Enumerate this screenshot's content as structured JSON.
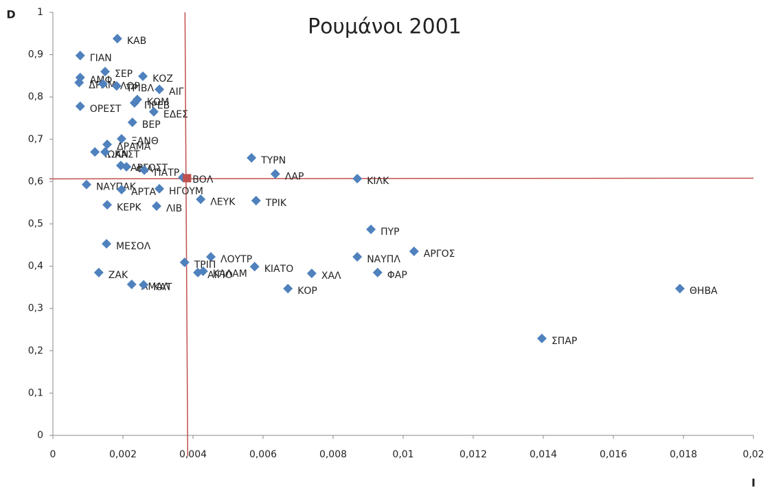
{
  "chart_data": {
    "type": "scatter",
    "title": "Ρουμάνοι 2001",
    "x_label": "I",
    "y_label": "D",
    "color": "#4f81bd",
    "mean_color": "#c0504d",
    "mean": {
      "x": 0.00383,
      "y": 0.608
    },
    "labels": [
      "ΚΑΒ",
      "ΓΙΑΝ",
      "ΣΕΡ",
      "ΚΟΖ",
      "ΑΜΦ",
      "ΔΡΑΜ",
      "ΦΛΩΡ",
      "ΤΡΙΒΛ",
      "ΑΙΓ",
      "ΚΟΜ",
      "ΠΡΕΒ",
      "ΟΡΕΣΤ",
      "ΕΔΕΣ",
      "ΒΕΡ",
      "ΞΑΝΘ",
      "ΔΡΑΜΑ",
      "ΙΩΑΝ",
      "ΚΑΣΤ",
      "ΑΡΓΟΣΤ",
      "ΦΙΛ",
      "ΠΑΤΡ",
      "ΝΑΥΠΑΚ",
      "ΑΡΤΑ",
      "ΗΓΟΥΜ",
      "ΒΟΛ",
      "ΚΕΡΚ",
      "ΛΙΒ",
      "ΛΕΥΚ",
      "ΤΡΙΚ",
      "ΤΥΡΝ",
      "ΛΑΡ",
      "ΚΙΛΚ",
      "ΠΥΡ",
      "ΝΑΥΠΛ",
      "ΑΡΓΟΣ",
      "ΦΑΡ",
      "ΘΗΒΑ",
      "ΣΠΑΡ",
      "ΚΟΡ",
      "ΧΑΛ",
      "ΚΙΑΤΟ",
      "ΛΟΥΤΡ",
      "ΤΡΙΠ",
      "ΚΑΛΑΜ",
      "ΑΙΓΙΟ",
      "ΜΕΣΟΛ",
      "ΖΑΚ",
      "ΑΜΑΛ",
      "ΚΑΤ"
    ],
    "x": [
      0.00184,
      0.00078,
      0.00149,
      0.00257,
      0.00078,
      0.00075,
      0.00143,
      0.00182,
      0.00304,
      0.00241,
      0.00233,
      0.00078,
      0.00288,
      0.00227,
      0.00196,
      0.00155,
      0.0012,
      0.00149,
      0.00194,
      0.0021,
      0.00261,
      0.00096,
      0.00196,
      0.00304,
      0.00371,
      0.00155,
      0.00296,
      0.00422,
      0.0058,
      0.00567,
      0.00635,
      0.00869,
      0.00908,
      0.00869,
      0.01031,
      0.00927,
      0.0179,
      0.01396,
      0.00671,
      0.00739,
      0.00576,
      0.00451,
      0.00376,
      0.00429,
      0.00414,
      0.00153,
      0.00131,
      0.00225,
      0.00259
    ],
    "values": [
      0.938,
      0.898,
      0.86,
      0.849,
      0.846,
      0.834,
      0.831,
      0.826,
      0.818,
      0.794,
      0.786,
      0.778,
      0.765,
      0.74,
      0.701,
      0.688,
      0.67,
      0.67,
      0.638,
      0.635,
      0.627,
      0.593,
      0.581,
      0.583,
      0.61,
      0.545,
      0.542,
      0.558,
      0.555,
      0.656,
      0.618,
      0.607,
      0.487,
      0.422,
      0.435,
      0.385,
      0.347,
      0.229,
      0.347,
      0.383,
      0.399,
      0.422,
      0.409,
      0.388,
      0.385,
      0.453,
      0.385,
      0.357,
      0.356
    ],
    "xlim": [
      0,
      0.02
    ],
    "ylim": [
      0,
      1
    ],
    "xticks": [
      0,
      {
        "value": 0.002,
        "label": "0,002"
      },
      {
        "value": 0.004,
        "label": "0,004"
      },
      {
        "value": 0.006,
        "label": "0,006"
      },
      {
        "value": 0.008,
        "label": "0,008"
      },
      {
        "value": 0.01,
        "label": "0,01"
      },
      {
        "value": 0.012,
        "label": "0,012"
      },
      {
        "value": 0.014,
        "label": "0,014"
      },
      {
        "value": 0.016,
        "label": "0,016"
      },
      {
        "value": 0.018,
        "label": "0,018"
      },
      {
        "value": 0.02,
        "label": "0,02"
      }
    ],
    "yticks": [
      0,
      {
        "value": 0.1,
        "label": "0,1"
      },
      {
        "value": 0.2,
        "label": "0,2"
      },
      {
        "value": 0.3,
        "label": "0,3"
      },
      {
        "value": 0.4,
        "label": "0,4"
      },
      {
        "value": 0.5,
        "label": "0,5"
      },
      {
        "value": 0.6,
        "label": "0,6"
      },
      {
        "value": 0.7,
        "label": "0,7"
      },
      {
        "value": 0.8,
        "label": "0,8"
      },
      {
        "value": 0.9,
        "label": "0,9"
      },
      1
    ]
  }
}
